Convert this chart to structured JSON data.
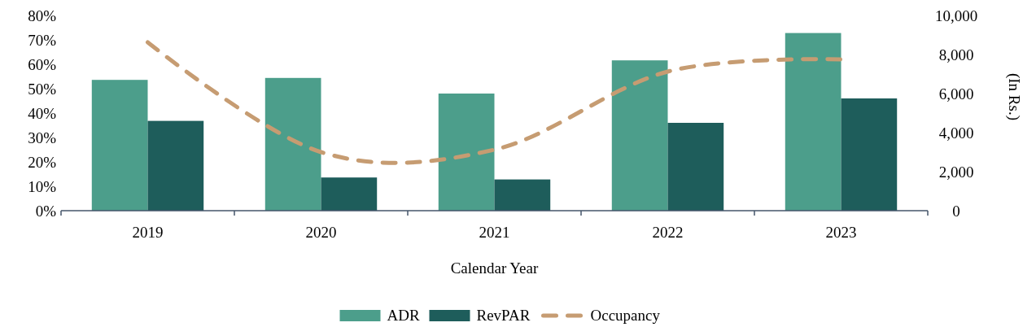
{
  "chart_data": {
    "type": "bar",
    "xlabel": "Calendar Year",
    "y2label": "(In Rs.)",
    "categories": [
      "2019",
      "2020",
      "2021",
      "2022",
      "2023"
    ],
    "series": [
      {
        "name": "ADR",
        "axis": "y2",
        "color": "#4c9e8b",
        "values": [
          6700,
          6800,
          6000,
          7700,
          9100
        ]
      },
      {
        "name": "RevPAR",
        "axis": "y2",
        "color": "#1e5d5b",
        "values": [
          4600,
          1700,
          1600,
          4500,
          5750
        ]
      },
      {
        "name": "Occupancy",
        "type": "line",
        "color": "#c69c72",
        "line_style": "dashed",
        "values": [
          69,
          24,
          25,
          57,
          62
        ]
      }
    ],
    "ylim": [
      0,
      80
    ],
    "yticks": [
      {
        "value": 0,
        "label": "0%"
      },
      {
        "value": 10,
        "label": "10%"
      },
      {
        "value": 20,
        "label": "20%"
      },
      {
        "value": 30,
        "label": "30%"
      },
      {
        "value": 40,
        "label": "40%"
      },
      {
        "value": 50,
        "label": "50%"
      },
      {
        "value": 60,
        "label": "60%"
      },
      {
        "value": 70,
        "label": "70%"
      },
      {
        "value": 80,
        "label": "80%"
      }
    ],
    "y2lim": [
      0,
      10000
    ],
    "y2ticks": [
      0,
      {
        "value": 2000,
        "label": "2,000"
      },
      {
        "value": 4000,
        "label": "4,000"
      },
      {
        "value": 6000,
        "label": "6,000"
      },
      {
        "value": 8000,
        "label": "8,000"
      },
      {
        "value": 10000,
        "label": "10,000"
      }
    ],
    "legend": "bottom",
    "grid": false
  }
}
